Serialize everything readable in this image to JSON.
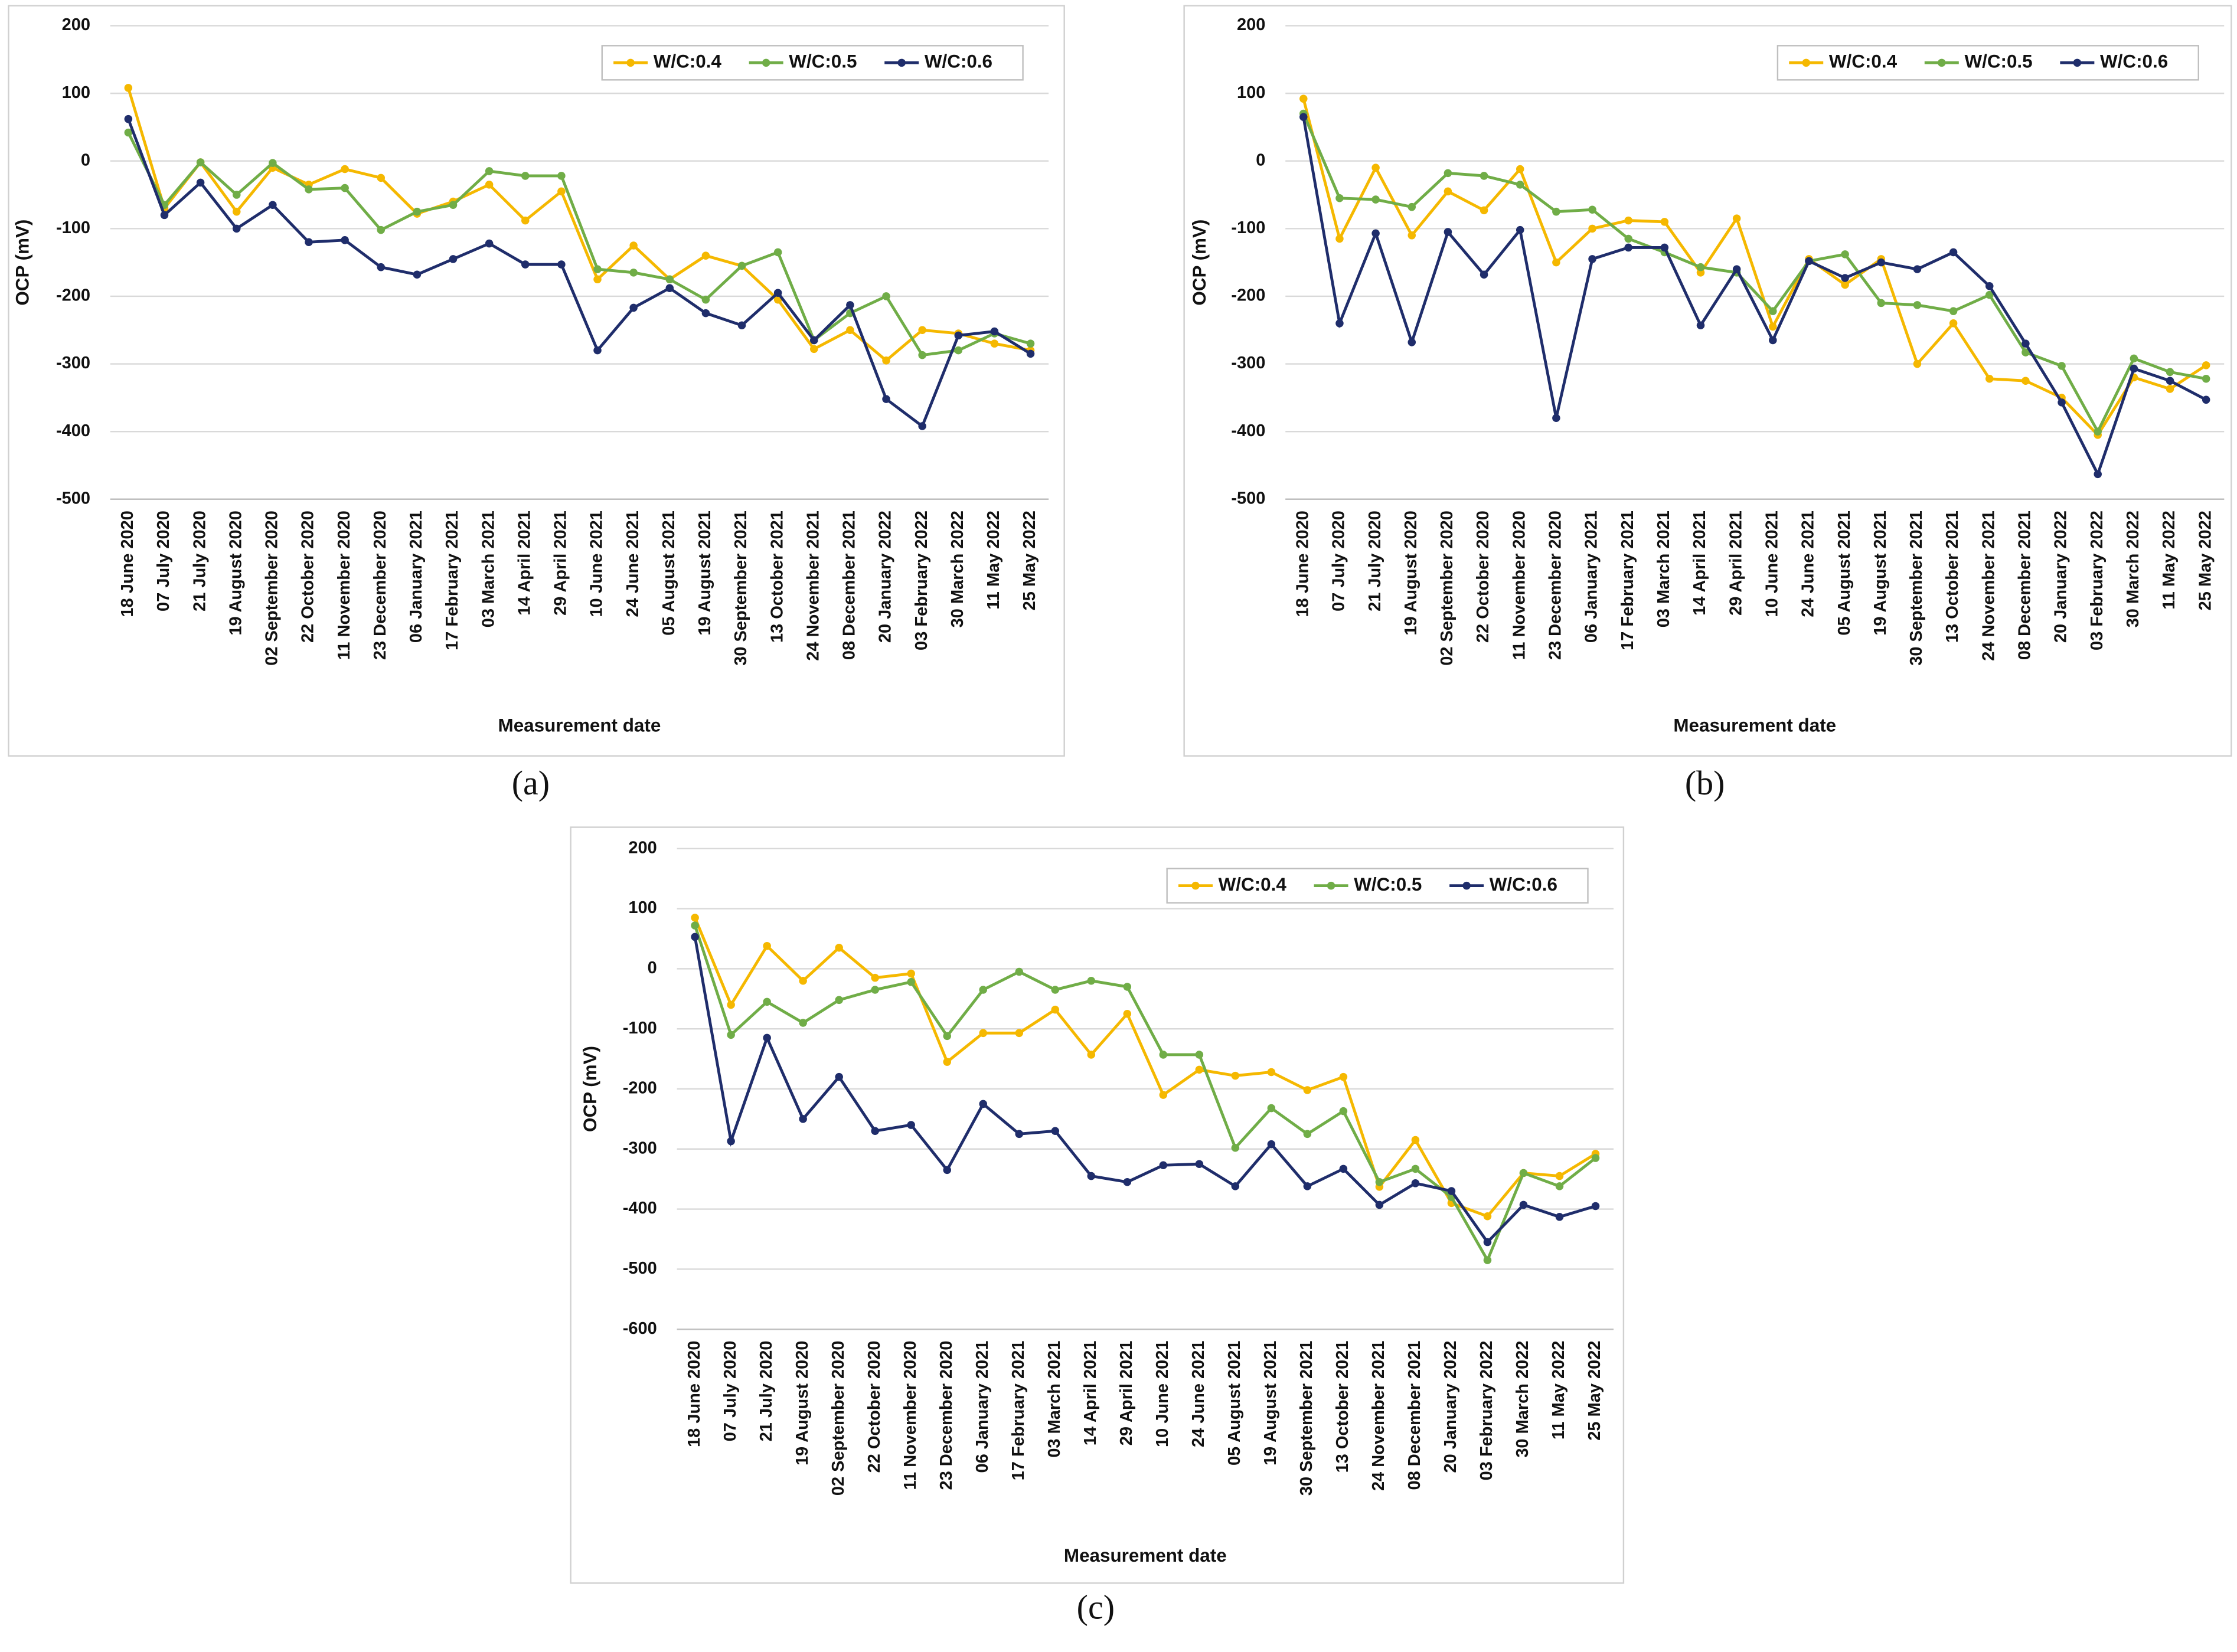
{
  "chart_data": [
    {
      "type": "line",
      "panel_label": "(a)",
      "xlabel": "Measurement date",
      "ylabel": "OCP (mV)",
      "categories": [
        "18 June 2020",
        "07 July 2020",
        "21 July 2020",
        "19 August 2020",
        "02 September 2020",
        "22 October 2020",
        "11 November 2020",
        "23 December 2020",
        "06 January 2021",
        "17 February 2021",
        "03 March 2021",
        "14 April 2021",
        "29 April 2021",
        "10 June 2021",
        "24 June 2021",
        "05 August 2021",
        "19 August 2021",
        "30 September 2021",
        "13 October 2021",
        "24 November 2021",
        "08 December 2021",
        "20 January 2022",
        "03 February 2022",
        "30 March 2022",
        "11 May 2022",
        "25 May 2022"
      ],
      "series": [
        {
          "name": "W/C:0.4",
          "color": "#f5b800",
          "values": [
            108,
            -70,
            -2,
            -75,
            -10,
            -35,
            -12,
            -25,
            -78,
            -60,
            -35,
            -88,
            -45,
            -175,
            -125,
            -175,
            -140,
            -155,
            -205,
            -278,
            -250,
            -295,
            -250,
            -255,
            -270,
            -280
          ]
        },
        {
          "name": "W/C:0.5",
          "color": "#70ad47",
          "values": [
            42,
            -65,
            -2,
            -50,
            -3,
            -42,
            -40,
            -102,
            -75,
            -65,
            -15,
            -22,
            -22,
            -160,
            -165,
            -175,
            -205,
            -155,
            -135,
            -265,
            -225,
            -200,
            -287,
            -280,
            -255,
            -270
          ]
        },
        {
          "name": "W/C:0.6",
          "color": "#1f2d6b",
          "values": [
            62,
            -80,
            -32,
            -100,
            -65,
            -120,
            -117,
            -157,
            -168,
            -145,
            -122,
            -153,
            -153,
            -280,
            -217,
            -188,
            -225,
            -243,
            -195,
            -265,
            -213,
            -352,
            -392,
            -258,
            -252,
            -285
          ]
        }
      ],
      "ylim": [
        -500,
        200
      ],
      "yticks": [
        -500,
        -400,
        -300,
        -200,
        -100,
        0,
        100,
        200
      ],
      "grid": true,
      "legend": "top-right"
    },
    {
      "type": "line",
      "panel_label": "(b)",
      "xlabel": "Measurement date",
      "ylabel": "OCP (mV)",
      "categories": [
        "18 June 2020",
        "07 July 2020",
        "21 July 2020",
        "19 August 2020",
        "02 September 2020",
        "22 October 2020",
        "11 November 2020",
        "23 December 2020",
        "06 January 2021",
        "17 February 2021",
        "03 March 2021",
        "14 April 2021",
        "29 April 2021",
        "10 June 2021",
        "24 June 2021",
        "05 August 2021",
        "19 August 2021",
        "30 September 2021",
        "13 October 2021",
        "24 November 2021",
        "08 December 2021",
        "20 January 2022",
        "03 February 2022",
        "30 March 2022",
        "11 May 2022",
        "25 May 2022"
      ],
      "series": [
        {
          "name": "W/C:0.4",
          "color": "#f5b800",
          "values": [
            92,
            -115,
            -10,
            -110,
            -45,
            -73,
            -12,
            -150,
            -100,
            -88,
            -90,
            -165,
            -85,
            -245,
            -145,
            -183,
            -145,
            -300,
            -240,
            -322,
            -325,
            -350,
            -405,
            -320,
            -337,
            -302
          ]
        },
        {
          "name": "W/C:0.5",
          "color": "#70ad47",
          "values": [
            70,
            -55,
            -57,
            -68,
            -18,
            -22,
            -35,
            -75,
            -72,
            -115,
            -135,
            -157,
            -165,
            -222,
            -148,
            -138,
            -210,
            -213,
            -222,
            -198,
            -283,
            -303,
            -400,
            -292,
            -312,
            -322
          ]
        },
        {
          "name": "W/C:0.6",
          "color": "#1f2d6b",
          "values": [
            65,
            -240,
            -107,
            -268,
            -105,
            -168,
            -102,
            -380,
            -145,
            -128,
            -128,
            -243,
            -160,
            -265,
            -148,
            -173,
            -150,
            -160,
            -135,
            -185,
            -270,
            -357,
            -463,
            -307,
            -325,
            -353
          ]
        }
      ],
      "ylim": [
        -500,
        200
      ],
      "yticks": [
        -500,
        -400,
        -300,
        -200,
        -100,
        0,
        100,
        200
      ],
      "grid": true,
      "legend": "top-right"
    },
    {
      "type": "line",
      "panel_label": "(c)",
      "xlabel": "Measurement date",
      "ylabel": "OCP (mV)",
      "categories": [
        "18 June 2020",
        "07 July 2020",
        "21 July 2020",
        "19 August 2020",
        "02 September 2020",
        "22 October 2020",
        "11 November 2020",
        "23 December 2020",
        "06 January 2021",
        "17 February 2021",
        "03 March 2021",
        "14 April 2021",
        "29 April 2021",
        "10 June 2021",
        "24 June 2021",
        "05 August 2021",
        "19 August 2021",
        "30 September 2021",
        "13 October 2021",
        "24 November 2021",
        "08 December 2021",
        "20 January 2022",
        "03 February 2022",
        "30 March 2022",
        "11 May 2022",
        "25 May 2022"
      ],
      "series": [
        {
          "name": "W/C:0.4",
          "color": "#f5b800",
          "values": [
            85,
            -60,
            38,
            -20,
            35,
            -15,
            -8,
            -155,
            -107,
            -107,
            -68,
            -143,
            -75,
            -210,
            -168,
            -178,
            -172,
            -202,
            -180,
            -363,
            -285,
            -390,
            -412,
            -340,
            -345,
            -308
          ]
        },
        {
          "name": "W/C:0.5",
          "color": "#70ad47",
          "values": [
            72,
            -110,
            -55,
            -90,
            -52,
            -35,
            -22,
            -112,
            -35,
            -5,
            -35,
            -20,
            -30,
            -143,
            -143,
            -298,
            -232,
            -275,
            -237,
            -355,
            -333,
            -380,
            -485,
            -340,
            -362,
            -315
          ]
        },
        {
          "name": "W/C:0.6",
          "color": "#1f2d6b",
          "values": [
            53,
            -287,
            -115,
            -250,
            -180,
            -270,
            -260,
            -335,
            -225,
            -275,
            -270,
            -345,
            -355,
            -327,
            -325,
            -362,
            -292,
            -362,
            -333,
            -393,
            -357,
            -370,
            -455,
            -393,
            -413,
            -395
          ]
        }
      ],
      "ylim": [
        -600,
        200
      ],
      "yticks": [
        -600,
        -500,
        -400,
        -300,
        -200,
        -100,
        0,
        100,
        200
      ],
      "grid": true,
      "legend": "top-right"
    }
  ]
}
